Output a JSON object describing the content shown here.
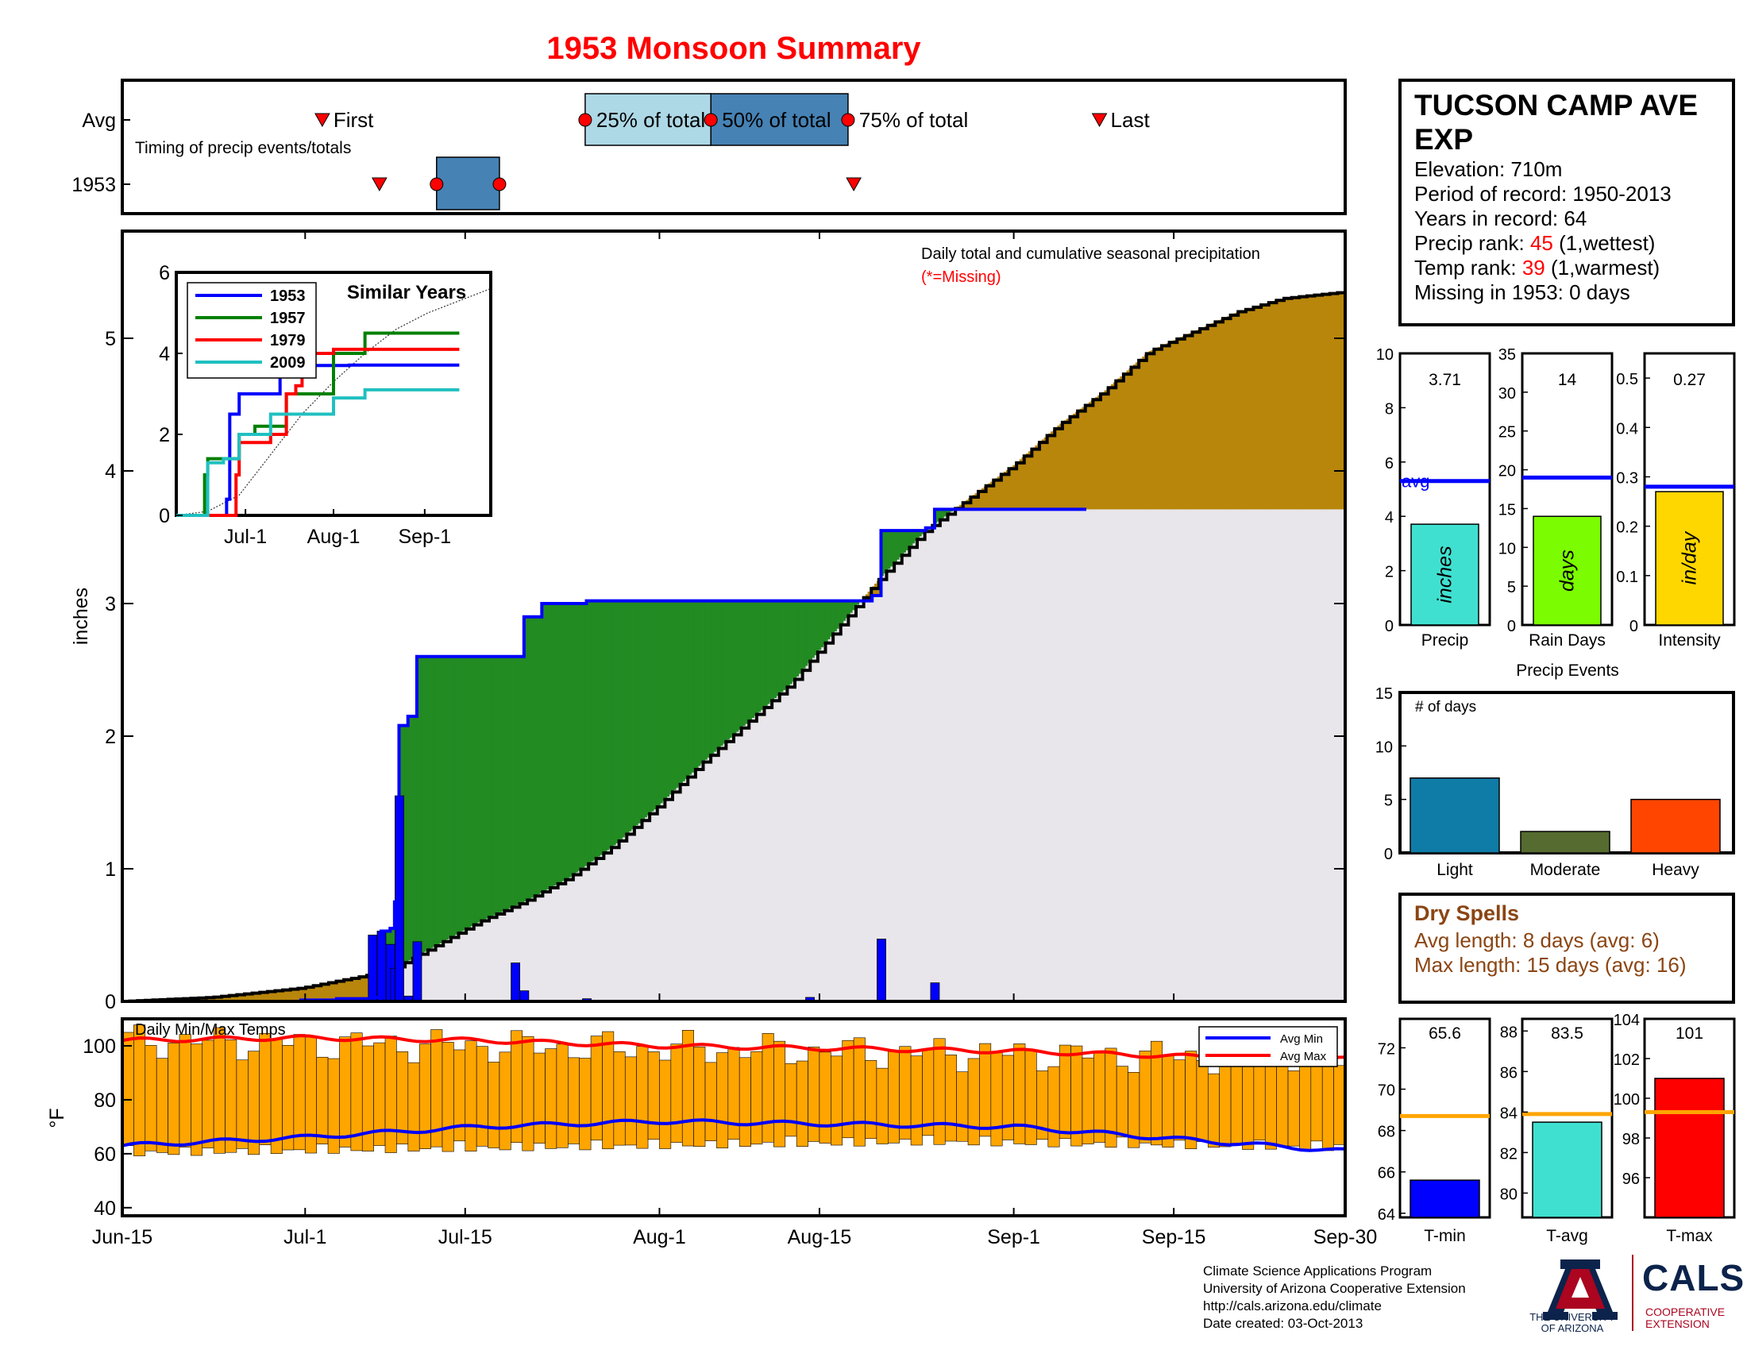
{
  "title": "1953 Monsoon Summary",
  "timing": {
    "caption": "Timing of precip events/totals",
    "row_avg_label": "Avg",
    "row_year_label": "1953",
    "first_label": "First",
    "last_label": "Last",
    "q25_label": "25% of total",
    "q50_label": "50% of total",
    "q75_label": "75% of total",
    "avg": {
      "first": 17.5,
      "q25": 40.5,
      "q50": 51.5,
      "q75": 63.5,
      "last": 85.5
    },
    "year": {
      "first": 22.5,
      "q25": 27.5,
      "q50": 33,
      "q75": 33,
      "last": 64
    },
    "colors": {
      "light": "#add8e6",
      "dark": "#4682b4",
      "marker": "#ff0000"
    }
  },
  "main_chart": {
    "label_main": "Daily total and cumulative seasonal precipitation",
    "label_missing": "(*=Missing)",
    "ylabel": "inches",
    "yticks": [
      "0",
      "1",
      "2",
      "3",
      "4",
      "5"
    ],
    "colors": {
      "below": "#b8860b",
      "above": "#228b22",
      "gray": "#e8e6ea",
      "step": "#0000ff"
    }
  },
  "inset": {
    "title": "Similar Years",
    "yticks": [
      "0",
      "2",
      "4",
      "6"
    ],
    "xticks": [
      "Jul-1",
      "Aug-1",
      "Sep-1"
    ],
    "legend": [
      "1953",
      "1957",
      "1979",
      "2009"
    ]
  },
  "temps": {
    "label": "Daily Min/Max Temps",
    "ylabel": "°F",
    "yticks": [
      "40",
      "60",
      "80",
      "100"
    ],
    "legend_min": "Avg Min",
    "legend_max": "Avg Max",
    "colors": {
      "bars": "#ffa500",
      "avg_min": "#0000ff",
      "avg_max": "#ff0000"
    }
  },
  "date_ticks": [
    "Jun-15",
    "Jul-1",
    "Jul-15",
    "Aug-1",
    "Aug-15",
    "Sep-1",
    "Sep-15",
    "Sep-30"
  ],
  "station": {
    "name": "TUCSON CAMP AVE EXP",
    "elevation": "Elevation: 710m",
    "period": "Period of record: 1950-2013",
    "years": "Years in record: 64",
    "precip_rank_prefix": "Precip rank: ",
    "precip_rank": "45",
    "precip_rank_suffix": " (1,wettest)",
    "temp_rank_prefix": "Temp rank: ",
    "temp_rank": "39",
    "temp_rank_suffix": " (1,warmest)",
    "missing": "Missing in 1953: 0 days"
  },
  "mini_bars": {
    "precip": {
      "value_label": "3.71",
      "inner": "inches",
      "xlabel": "Precip",
      "yticks": [
        "0",
        "2",
        "4",
        "6",
        "8",
        "10"
      ],
      "avg_label": "avg",
      "color": "#40e0d0"
    },
    "rain_days": {
      "value_label": "14",
      "inner": "days",
      "xlabel": "Rain Days",
      "yticks": [
        "0",
        "5",
        "10",
        "15",
        "20",
        "25",
        "30",
        "35"
      ],
      "color": "#7cfc00"
    },
    "intensity": {
      "value_label": "0.27",
      "inner": "in/day",
      "xlabel": "Intensity",
      "yticks": [
        "0",
        "0.1",
        "0.2",
        "0.3",
        "0.4",
        "0.5"
      ],
      "color": "#ffd700"
    }
  },
  "events": {
    "title": "Precip Events",
    "ylabel": "# of days",
    "yticks": [
      "0",
      "5",
      "10",
      "15"
    ],
    "categories": [
      "Light",
      "Moderate",
      "Heavy"
    ],
    "colors": [
      "#0e7ca6",
      "#556b2f",
      "#ff4500"
    ]
  },
  "dry_spells": {
    "title": "Dry Spells",
    "avg_length": "Avg length: 8 days (avg: 6)",
    "max_length": "Max length: 15 days (avg: 16)",
    "color": "#8b4513"
  },
  "temp_bars": {
    "tmin": {
      "value_label": "65.6",
      "xlabel": "T-min",
      "yticks": [
        "64",
        "66",
        "68",
        "70",
        "72"
      ],
      "color": "#0000ff"
    },
    "tavg": {
      "value_label": "83.5",
      "xlabel": "T-avg",
      "yticks": [
        "80",
        "82",
        "84",
        "86",
        "88"
      ],
      "color": "#40e0d0"
    },
    "tmax": {
      "value_label": "101",
      "xlabel": "T-max",
      "yticks": [
        "96",
        "98",
        "100",
        "102",
        "104"
      ],
      "color": "#ff0000"
    },
    "avg_line_color": "#ffa500"
  },
  "footer": {
    "line1": "Climate Science Applications Program",
    "line2": "University of Arizona Cooperative Extension",
    "line3": "http://cals.arizona.edu/climate",
    "line4": " Date created: 03-Oct-2013"
  },
  "logos": {
    "ua_text": "THE UNIVERSITY OF ARIZONA",
    "cals": "CALS",
    "cals_sub": "COOPERATIVE EXTENSION"
  },
  "chart_data": [
    {
      "type": "area",
      "title": "Daily total and cumulative seasonal precipitation",
      "ylabel": "inches",
      "ylim": [
        0,
        6
      ],
      "x_range": [
        "Jun-15",
        "Sep-30"
      ],
      "series": [
        {
          "name": "1953",
          "points": [
            [
              0,
              0
            ],
            [
              2,
              0
            ],
            [
              12,
              0
            ],
            [
              16,
              0
            ],
            [
              20,
              0.01
            ],
            [
              24,
              0.02
            ],
            [
              28,
              0.03
            ],
            [
              29,
              0.53
            ],
            [
              30,
              0.55
            ],
            [
              30.5,
              0.75
            ],
            [
              31,
              2.08
            ],
            [
              32,
              2.15
            ],
            [
              33,
              2.6
            ],
            [
              44,
              2.6
            ],
            [
              45,
              2.9
            ],
            [
              47,
              3.0
            ],
            [
              52,
              3.02
            ],
            [
              84,
              3.06
            ],
            [
              85,
              3.55
            ],
            [
              90,
              3.57
            ],
            [
              91,
              3.71
            ],
            [
              108,
              3.71
            ]
          ]
        }
      ],
      "average_cumulative": [
        [
          0,
          0
        ],
        [
          10,
          0.03
        ],
        [
          20,
          0.1
        ],
        [
          30,
          0.23
        ],
        [
          40,
          0.6
        ],
        [
          45,
          0.75
        ],
        [
          50,
          0.93
        ],
        [
          55,
          1.17
        ],
        [
          60,
          1.47
        ],
        [
          65,
          1.8
        ],
        [
          70,
          2.1
        ],
        [
          75,
          2.4
        ],
        [
          80,
          2.8
        ],
        [
          85,
          3.2
        ],
        [
          90,
          3.55
        ],
        [
          95,
          3.8
        ],
        [
          100,
          4.05
        ],
        [
          105,
          4.35
        ],
        [
          110,
          4.6
        ],
        [
          115,
          4.9
        ],
        [
          120,
          5.05
        ],
        [
          125,
          5.2
        ],
        [
          130,
          5.3
        ],
        [
          137,
          5.35
        ]
      ],
      "daily_precip": [
        [
          28,
          0.5
        ],
        [
          29,
          0.53
        ],
        [
          30,
          0.43
        ],
        [
          30.5,
          0.25
        ],
        [
          31,
          1.55
        ],
        [
          32,
          0.04
        ],
        [
          33,
          0.45
        ],
        [
          44,
          0.29
        ],
        [
          45,
          0.08
        ],
        [
          52,
          0.02
        ],
        [
          85,
          0.47
        ],
        [
          91,
          0.14
        ],
        [
          77,
          0.03
        ]
      ]
    },
    {
      "type": "line",
      "title": "Similar Years",
      "ylim": [
        0,
        6
      ],
      "x_ticks": [
        "Jul-1",
        "Aug-1",
        "Sep-1"
      ],
      "series": [
        {
          "name": "1953",
          "points": [
            [
              0,
              0
            ],
            [
              15,
              0
            ],
            [
              16,
              0.4
            ],
            [
              17,
              2.5
            ],
            [
              20,
              3.0
            ],
            [
              25,
              3.0
            ],
            [
              30,
              3.0
            ],
            [
              33,
              3.6
            ],
            [
              35,
              3.6
            ],
            [
              43,
              3.6
            ],
            [
              44,
              3.7
            ],
            [
              50,
              3.7
            ],
            [
              55,
              3.71
            ],
            [
              90,
              3.71
            ]
          ]
        },
        {
          "name": "1957",
          "points": [
            [
              0,
              0
            ],
            [
              8,
              0
            ],
            [
              9,
              1.0
            ],
            [
              10,
              1.4
            ],
            [
              14,
              1.4
            ],
            [
              20,
              2.0
            ],
            [
              25,
              2.2
            ],
            [
              35,
              3.0
            ],
            [
              40,
              3.0
            ],
            [
              50,
              4.0
            ],
            [
              60,
              4.5
            ],
            [
              90,
              4.5
            ]
          ]
        },
        {
          "name": "1979",
          "points": [
            [
              0,
              0
            ],
            [
              18,
              0
            ],
            [
              19,
              1.0
            ],
            [
              20,
              1.8
            ],
            [
              30,
              2.0
            ],
            [
              35,
              3.0
            ],
            [
              38,
              3.2
            ],
            [
              40,
              4.0
            ],
            [
              50,
              4.1
            ],
            [
              90,
              4.1
            ]
          ]
        },
        {
          "name": "2009",
          "points": [
            [
              0,
              0
            ],
            [
              9,
              0
            ],
            [
              10,
              1.3
            ],
            [
              15,
              1.4
            ],
            [
              20,
              2.0
            ],
            [
              30,
              2.5
            ],
            [
              40,
              2.5
            ],
            [
              50,
              2.9
            ],
            [
              60,
              3.1
            ],
            [
              90,
              3.1
            ]
          ]
        }
      ]
    },
    {
      "type": "bar",
      "title": "Daily Min/Max Temps",
      "ylabel": "°F",
      "ylim": [
        40,
        110
      ],
      "series": [
        {
          "name": "Avg Min",
          "points": [
            [
              0,
              63
            ],
            [
              20,
              66
            ],
            [
              40,
              70
            ],
            [
              60,
              72
            ],
            [
              80,
              71
            ],
            [
              100,
              70
            ],
            [
              120,
              65
            ],
            [
              137,
              61
            ]
          ]
        },
        {
          "name": "Avg Max",
          "points": [
            [
              0,
              102
            ],
            [
              20,
              103
            ],
            [
              40,
              102
            ],
            [
              60,
              100
            ],
            [
              80,
              99
            ],
            [
              100,
              98
            ],
            [
              120,
              96
            ],
            [
              137,
              95
            ]
          ]
        }
      ]
    },
    {
      "type": "bar",
      "title": "Precip",
      "categories": [
        "Precip",
        "Rain Days",
        "Intensity"
      ],
      "values": [
        3.71,
        14,
        0.27
      ],
      "averages": [
        5.3,
        19,
        0.28
      ]
    },
    {
      "type": "bar",
      "title": "Precip Events",
      "categories": [
        "Light",
        "Moderate",
        "Heavy"
      ],
      "values": [
        7,
        2,
        5
      ],
      "ylim": [
        0,
        15
      ]
    },
    {
      "type": "bar",
      "categories": [
        "T-min",
        "T-avg",
        "T-max"
      ],
      "values": [
        65.6,
        83.5,
        101
      ],
      "averages": [
        68.7,
        83.9,
        99.3
      ]
    }
  ]
}
